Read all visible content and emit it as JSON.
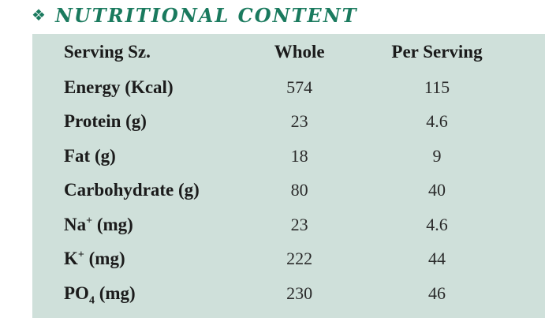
{
  "heading": {
    "bullet_icon": "four-diamond-ornament-icon",
    "title": "NUTRITIONAL CONTENT",
    "color": "#1a7a5e"
  },
  "panel": {
    "background": "#cfe0da"
  },
  "table": {
    "headers": {
      "label": "Serving Sz.",
      "whole": "Whole",
      "per_serving": "Per Serving"
    },
    "rows": [
      {
        "label": "Energy (Kcal)",
        "whole": "574",
        "per_serving": "115"
      },
      {
        "label": "Protein (g)",
        "whole": "23",
        "per_serving": "4.6"
      },
      {
        "label": "Fat (g)",
        "whole": "18",
        "per_serving": "9"
      },
      {
        "label": "Carbohydrate (g)",
        "whole": "80",
        "per_serving": "40"
      },
      {
        "label_base": "Na",
        "label_sup": "+",
        "label_unit": " (mg)",
        "whole": "23",
        "per_serving": "4.6"
      },
      {
        "label_base": "K",
        "label_sup": "+",
        "label_unit": " (mg)",
        "whole": "222",
        "per_serving": "44"
      },
      {
        "label_base": "PO",
        "label_sub": "4",
        "label_unit": " (mg)",
        "whole": "230",
        "per_serving": "46"
      }
    ]
  }
}
